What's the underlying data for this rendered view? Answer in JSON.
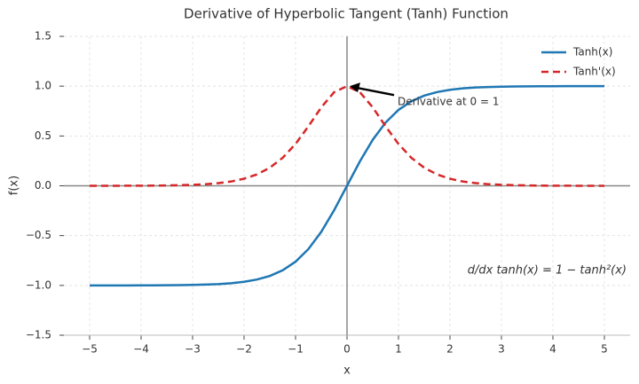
{
  "chart_data": {
    "type": "line",
    "title": "Derivative of Hyperbolic Tangent (Tanh) Function",
    "x_label": "x",
    "y_label": "f(x)",
    "x": [
      -5,
      -4.75,
      -4.5,
      -4.25,
      -4,
      -3.75,
      -3.5,
      -3.25,
      -3,
      -2.75,
      -2.5,
      -2.25,
      -2,
      -1.75,
      -1.5,
      -1.25,
      -1,
      -0.75,
      -0.5,
      -0.25,
      0,
      0.25,
      0.5,
      0.75,
      1,
      1.25,
      1.5,
      1.75,
      2,
      2.25,
      2.5,
      2.75,
      3,
      3.25,
      3.5,
      3.75,
      4,
      4.25,
      4.5,
      4.75,
      5
    ],
    "series": [
      {
        "name": "Tanh(x)",
        "color": "#1f77b4",
        "style": "solid",
        "values": [
          -1.0,
          -1.0,
          -1.0,
          -1.0,
          -0.999,
          -0.999,
          -0.998,
          -0.997,
          -0.995,
          -0.992,
          -0.987,
          -0.978,
          -0.964,
          -0.941,
          -0.905,
          -0.848,
          -0.762,
          -0.635,
          -0.462,
          -0.245,
          0,
          0.245,
          0.462,
          0.635,
          0.762,
          0.848,
          0.905,
          0.941,
          0.964,
          0.978,
          0.987,
          0.992,
          0.995,
          0.997,
          0.998,
          0.999,
          0.999,
          1.0,
          1.0,
          1.0,
          1.0
        ]
      },
      {
        "name": "Tanh'(x)",
        "color": "#d62728",
        "style": "dashed",
        "values": [
          0.0,
          0.0,
          0.0,
          0.001,
          0.001,
          0.002,
          0.004,
          0.006,
          0.01,
          0.016,
          0.027,
          0.043,
          0.071,
          0.114,
          0.181,
          0.281,
          0.42,
          0.597,
          0.787,
          0.94,
          1.0,
          0.94,
          0.787,
          0.597,
          0.42,
          0.281,
          0.181,
          0.114,
          0.071,
          0.043,
          0.027,
          0.016,
          0.01,
          0.006,
          0.004,
          0.002,
          0.001,
          0.001,
          0.0,
          0.0,
          0.0
        ]
      }
    ],
    "annotation": {
      "text": "Derivative at 0 = 1",
      "xy": [
        0,
        1
      ]
    },
    "formula": "d/dx tanh(x) = 1 − tanh²(x)",
    "xlim": [
      -5.5,
      5.5
    ],
    "ylim": [
      -1.5,
      1.5
    ],
    "xticks": [
      {
        "value": -5,
        "label": "−5"
      },
      {
        "value": -4,
        "label": "−4"
      },
      {
        "value": -3,
        "label": "−3"
      },
      {
        "value": -2,
        "label": "−2"
      },
      {
        "value": -1,
        "label": "−1"
      },
      0,
      1,
      2,
      3,
      4,
      5
    ],
    "yticks": [
      {
        "value": -1.5,
        "label": "−1.5"
      },
      {
        "value": -1,
        "label": "−1.0"
      },
      {
        "value": -0.5,
        "label": "−0.5"
      },
      {
        "value": 0,
        "label": "0.0"
      },
      {
        "value": 0.5,
        "label": "0.5"
      },
      {
        "value": 1,
        "label": "1.0"
      },
      {
        "value": 1.5,
        "label": "1.5"
      }
    ],
    "grid": true,
    "legend": "upper right",
    "zero_lines": true
  }
}
